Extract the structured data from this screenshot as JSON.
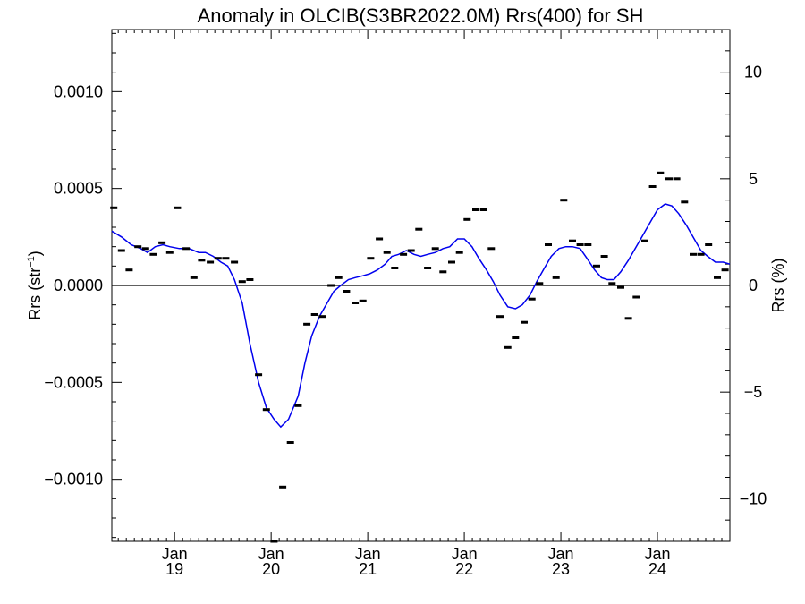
{
  "chart_data": {
    "type": "scatter",
    "title": "Anomaly in OLCIB(S3BR2022.0M) Rrs(400) for SH",
    "ylabel_left_main": "Rrs (str",
    "ylabel_left_sup": "−1",
    "ylabel_left_close": ")",
    "ylabel_right": "Rrs (%)",
    "xlim": [
      2018.35,
      2024.75
    ],
    "ylim_left": [
      -0.00132,
      0.00132
    ],
    "ylim_right": [
      -12,
      12
    ],
    "x_ticks": [
      {
        "x": 2019.0,
        "line1": "Jan",
        "line2": "19"
      },
      {
        "x": 2020.0,
        "line1": "Jan",
        "line2": "20"
      },
      {
        "x": 2021.0,
        "line1": "Jan",
        "line2": "21"
      },
      {
        "x": 2022.0,
        "line1": "Jan",
        "line2": "22"
      },
      {
        "x": 2023.0,
        "line1": "Jan",
        "line2": "23"
      },
      {
        "x": 2024.0,
        "line1": "Jan",
        "line2": "24"
      }
    ],
    "y_ticks_left": [
      {
        "v": 0.001,
        "label": "0.0010"
      },
      {
        "v": 0.0005,
        "label": "0.0005"
      },
      {
        "v": 0.0,
        "label": "0.0000"
      },
      {
        "v": -0.0005,
        "label": "−0.0005"
      },
      {
        "v": -0.001,
        "label": "−0.0010"
      }
    ],
    "y_ticks_right": [
      {
        "v": 10,
        "label": "10"
      },
      {
        "v": 5,
        "label": "5"
      },
      {
        "v": 0,
        "label": "0"
      },
      {
        "v": -5,
        "label": "−5"
      },
      {
        "v": -10,
        "label": "−10"
      }
    ],
    "zero_line": true,
    "monthly_points": [
      [
        2018.37,
        0.0004
      ],
      [
        2018.45,
        0.00018
      ],
      [
        2018.53,
        8e-05
      ],
      [
        2018.62,
        0.0002
      ],
      [
        2018.7,
        0.00019
      ],
      [
        2018.78,
        0.00016
      ],
      [
        2018.87,
        0.00022
      ],
      [
        2018.95,
        0.00017
      ],
      [
        2019.03,
        0.0004
      ],
      [
        2019.12,
        0.00019
      ],
      [
        2019.2,
        4e-05
      ],
      [
        2019.28,
        0.00013
      ],
      [
        2019.37,
        0.00012
      ],
      [
        2019.45,
        0.00014
      ],
      [
        2019.53,
        0.00014
      ],
      [
        2019.62,
        0.00012
      ],
      [
        2019.7,
        2e-05
      ],
      [
        2019.78,
        3e-05
      ],
      [
        2019.87,
        -0.00046
      ],
      [
        2019.95,
        -0.00064
      ],
      [
        2020.03,
        -0.00132
      ],
      [
        2020.12,
        -0.00104
      ],
      [
        2020.2,
        -0.00081
      ],
      [
        2020.28,
        -0.00062
      ],
      [
        2020.37,
        -0.0002
      ],
      [
        2020.45,
        -0.00015
      ],
      [
        2020.53,
        -0.00016
      ],
      [
        2020.62,
        0.0
      ],
      [
        2020.7,
        4e-05
      ],
      [
        2020.78,
        -3e-05
      ],
      [
        2020.87,
        -9e-05
      ],
      [
        2020.95,
        -8e-05
      ],
      [
        2021.03,
        0.00014
      ],
      [
        2021.12,
        0.00024
      ],
      [
        2021.2,
        0.00017
      ],
      [
        2021.28,
        9e-05
      ],
      [
        2021.37,
        0.00016
      ],
      [
        2021.45,
        0.00018
      ],
      [
        2021.53,
        0.00029
      ],
      [
        2021.62,
        9e-05
      ],
      [
        2021.7,
        0.00019
      ],
      [
        2021.78,
        7e-05
      ],
      [
        2021.87,
        0.00012
      ],
      [
        2021.95,
        0.00017
      ],
      [
        2022.03,
        0.00034
      ],
      [
        2022.12,
        0.00039
      ],
      [
        2022.2,
        0.00039
      ],
      [
        2022.28,
        0.00019
      ],
      [
        2022.37,
        -0.00016
      ],
      [
        2022.45,
        -0.00032
      ],
      [
        2022.53,
        -0.00027
      ],
      [
        2022.62,
        -0.00019
      ],
      [
        2022.7,
        -7e-05
      ],
      [
        2022.78,
        1e-05
      ],
      [
        2022.87,
        0.00021
      ],
      [
        2022.95,
        4e-05
      ],
      [
        2023.03,
        0.00044
      ],
      [
        2023.12,
        0.00023
      ],
      [
        2023.2,
        0.00021
      ],
      [
        2023.28,
        0.00021
      ],
      [
        2023.37,
        0.0001
      ],
      [
        2023.45,
        0.00015
      ],
      [
        2023.53,
        1e-05
      ],
      [
        2023.62,
        -1e-05
      ],
      [
        2023.7,
        -0.00017
      ],
      [
        2023.78,
        -6e-05
      ],
      [
        2023.87,
        0.00023
      ],
      [
        2023.95,
        0.00051
      ],
      [
        2024.03,
        0.00058
      ],
      [
        2024.12,
        0.00055
      ],
      [
        2024.2,
        0.00055
      ],
      [
        2024.28,
        0.00043
      ],
      [
        2024.37,
        0.00016
      ],
      [
        2024.45,
        0.00016
      ],
      [
        2024.53,
        0.00021
      ],
      [
        2024.62,
        4e-05
      ],
      [
        2024.7,
        8e-05
      ]
    ],
    "smoothed_line": [
      [
        2018.35,
        0.00028
      ],
      [
        2018.45,
        0.00025
      ],
      [
        2018.55,
        0.00021
      ],
      [
        2018.65,
        0.00019
      ],
      [
        2018.72,
        0.00017
      ],
      [
        2018.8,
        0.0002
      ],
      [
        2018.88,
        0.00021
      ],
      [
        2018.95,
        0.0002
      ],
      [
        2019.05,
        0.00019
      ],
      [
        2019.15,
        0.00019
      ],
      [
        2019.25,
        0.00017
      ],
      [
        2019.32,
        0.00017
      ],
      [
        2019.4,
        0.00015
      ],
      [
        2019.48,
        0.00012
      ],
      [
        2019.55,
        0.0001
      ],
      [
        2019.62,
        3e-05
      ],
      [
        2019.7,
        -9e-05
      ],
      [
        2019.78,
        -0.0003
      ],
      [
        2019.87,
        -0.0005
      ],
      [
        2019.95,
        -0.00063
      ],
      [
        2020.03,
        -0.00069
      ],
      [
        2020.1,
        -0.00073
      ],
      [
        2020.18,
        -0.00069
      ],
      [
        2020.28,
        -0.00057
      ],
      [
        2020.35,
        -0.0004
      ],
      [
        2020.42,
        -0.00026
      ],
      [
        2020.5,
        -0.00016
      ],
      [
        2020.58,
        -9e-05
      ],
      [
        2020.65,
        -3e-05
      ],
      [
        2020.72,
        0.0
      ],
      [
        2020.8,
        3e-05
      ],
      [
        2020.87,
        4e-05
      ],
      [
        2020.95,
        5e-05
      ],
      [
        2021.02,
        6e-05
      ],
      [
        2021.1,
        8e-05
      ],
      [
        2021.18,
        0.00011
      ],
      [
        2021.25,
        0.00015
      ],
      [
        2021.32,
        0.00016
      ],
      [
        2021.4,
        0.00018
      ],
      [
        2021.48,
        0.00016
      ],
      [
        2021.55,
        0.00015
      ],
      [
        2021.62,
        0.00016
      ],
      [
        2021.7,
        0.00017
      ],
      [
        2021.78,
        0.00019
      ],
      [
        2021.85,
        0.0002
      ],
      [
        2021.93,
        0.00024
      ],
      [
        2022.0,
        0.00024
      ],
      [
        2022.08,
        0.0002
      ],
      [
        2022.15,
        0.00014
      ],
      [
        2022.23,
        8e-05
      ],
      [
        2022.3,
        2e-05
      ],
      [
        2022.37,
        -5e-05
      ],
      [
        2022.45,
        -0.00011
      ],
      [
        2022.53,
        -0.00012
      ],
      [
        2022.6,
        -0.0001
      ],
      [
        2022.68,
        -5e-05
      ],
      [
        2022.75,
        2e-05
      ],
      [
        2022.83,
        9e-05
      ],
      [
        2022.9,
        0.00015
      ],
      [
        2022.98,
        0.00019
      ],
      [
        2023.05,
        0.0002
      ],
      [
        2023.12,
        0.0002
      ],
      [
        2023.2,
        0.00019
      ],
      [
        2023.27,
        0.00014
      ],
      [
        2023.35,
        8e-05
      ],
      [
        2023.42,
        4e-05
      ],
      [
        2023.48,
        3e-05
      ],
      [
        2023.55,
        3e-05
      ],
      [
        2023.62,
        7e-05
      ],
      [
        2023.7,
        0.00013
      ],
      [
        2023.78,
        0.0002
      ],
      [
        2023.85,
        0.00026
      ],
      [
        2023.93,
        0.00033
      ],
      [
        2024.0,
        0.00039
      ],
      [
        2024.08,
        0.00042
      ],
      [
        2024.15,
        0.00041
      ],
      [
        2024.22,
        0.00037
      ],
      [
        2024.3,
        0.00031
      ],
      [
        2024.38,
        0.00024
      ],
      [
        2024.45,
        0.00018
      ],
      [
        2024.52,
        0.00015
      ],
      [
        2024.6,
        0.00012
      ],
      [
        2024.68,
        0.00012
      ],
      [
        2024.75,
        0.00011
      ]
    ],
    "colors": {
      "points": "#000000",
      "line": "#0000ee",
      "zero": "#000000",
      "axes": "#000000"
    },
    "grid": false
  }
}
